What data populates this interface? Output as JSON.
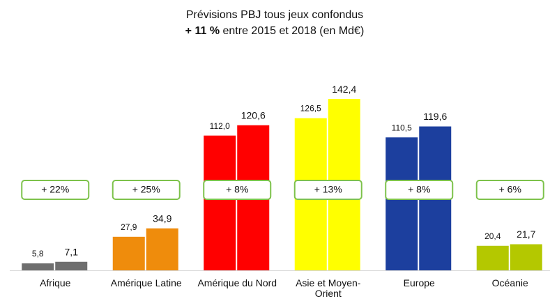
{
  "chart_data": {
    "type": "bar",
    "title": "Prévisions PBJ tous jeux confondus",
    "subtitle_bold": "+ 11 %",
    "subtitle": "entre 2015 et 2018 (en Md€)",
    "categories": [
      "Afrique",
      "Amérique Latine",
      "Amérique du Nord",
      "Asie et Moyen-Orient",
      "Europe",
      "Océanie"
    ],
    "category_colors": [
      "#6e6e6e",
      "#ef8c0c",
      "#ff0000",
      "#ffff00",
      "#1c3f9e",
      "#b4c800"
    ],
    "series": [
      {
        "values": [
          5.8,
          27.9,
          112.0,
          126.5,
          110.5,
          20.4
        ],
        "value_labels": [
          "5,8",
          "27,9",
          "112,0",
          "126,5",
          "110,5",
          "20,4"
        ]
      },
      {
        "values": [
          7.1,
          34.9,
          120.6,
          142.4,
          119.6,
          21.7
        ],
        "value_labels": [
          "7,1",
          "34,9",
          "120,6",
          "142,4",
          "119,6",
          "21,7"
        ]
      }
    ],
    "annotations": [
      "+ 22%",
      "+ 25%",
      "+ 8%",
      "+ 13%",
      "+ 8%",
      "+ 6%"
    ],
    "ylim": [
      0,
      150
    ]
  }
}
